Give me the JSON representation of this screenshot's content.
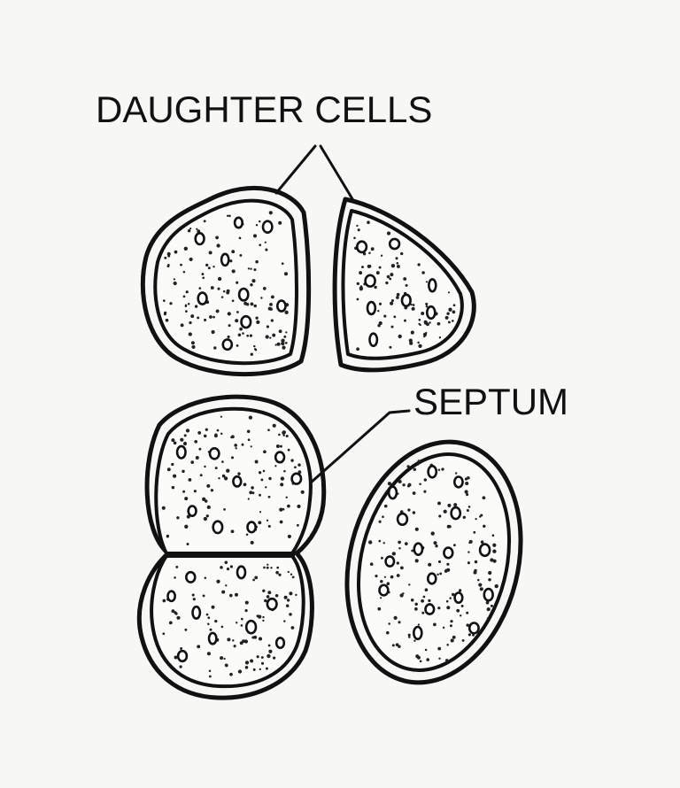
{
  "labels": {
    "daughter_cells": "DAUGHTER CELLS",
    "septum": "SEPTUM"
  }
}
